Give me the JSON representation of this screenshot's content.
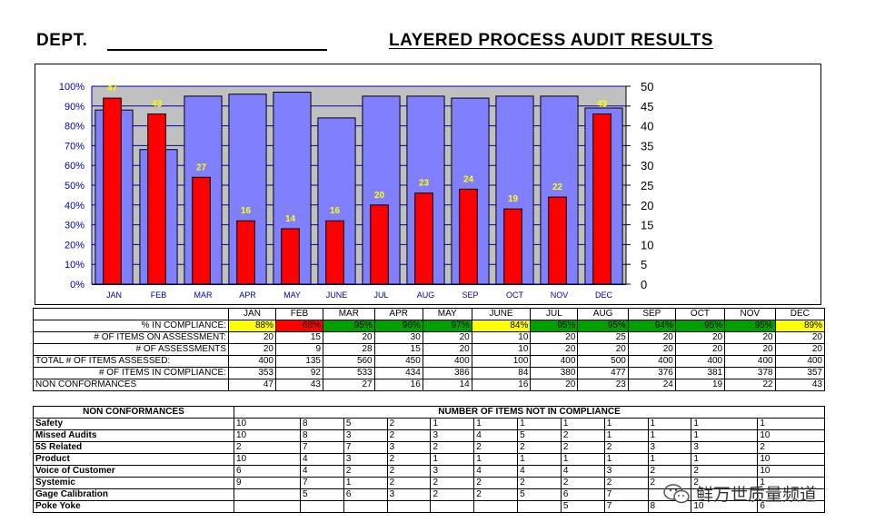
{
  "header": {
    "dept": "DEPT.",
    "title": "LAYERED PROCESS AUDIT RESULTS"
  },
  "chart_data": {
    "type": "bar",
    "categories": [
      "JAN",
      "FEB",
      "MAR",
      "APR",
      "MAY",
      "JUNE",
      "JUL",
      "AUG",
      "SEP",
      "OCT",
      "NOV",
      "DEC"
    ],
    "series": [
      {
        "values": [
          88,
          68,
          95,
          96,
          97,
          84,
          95,
          95,
          94,
          95,
          95,
          89
        ],
        "axis": "left",
        "color": "#8080ff"
      },
      {
        "values": [
          47,
          43,
          27,
          16,
          14,
          16,
          20,
          23,
          24,
          19,
          22,
          43
        ],
        "axis": "right",
        "color": "#ff0000",
        "data_labels": true
      }
    ],
    "y_left_ticks": [
      "0%",
      "10%",
      "20%",
      "30%",
      "40%",
      "50%",
      "60%",
      "70%",
      "80%",
      "90%",
      "100%"
    ],
    "y_right_ticks": [
      "0",
      "5",
      "10",
      "15",
      "20",
      "25",
      "30",
      "35",
      "40",
      "45",
      "50"
    ],
    "ylim_left": [
      0,
      100
    ],
    "ylim_right": [
      0,
      50
    ],
    "plot_background": "#c0c0c0",
    "grid": true,
    "legend": "none"
  },
  "stats": {
    "months": [
      "JAN",
      "FEB",
      "MAR",
      "APR",
      "MAY",
      "JUNE",
      "JUL",
      "AUG",
      "SEP",
      "OCT",
      "NOV",
      "DEC"
    ],
    "rows": [
      {
        "label": "% IN COMPLIANCE:",
        "values": [
          "88%",
          "68%",
          "95%",
          "96%",
          "97%",
          "84%",
          "95%",
          "95%",
          "94%",
          "95%",
          "95%",
          "89%"
        ],
        "colors": [
          "#ffff00",
          "#ff0000",
          "#00a000",
          "#00a000",
          "#00a000",
          "#ffff00",
          "#00a000",
          "#00a000",
          "#00a000",
          "#00a000",
          "#00a000",
          "#ffff00"
        ]
      },
      {
        "label": "# OF ITEMS ON ASSESSMENT:",
        "values": [
          "20",
          "15",
          "20",
          "30",
          "20",
          "10",
          "20",
          "25",
          "20",
          "20",
          "20",
          "20"
        ]
      },
      {
        "label": "# OF ASSESSMENTS",
        "values": [
          "20",
          "9",
          "28",
          "15",
          "20",
          "10",
          "20",
          "20",
          "20",
          "20",
          "20",
          "20"
        ]
      },
      {
        "label": "TOTAL # OF ITEMS ASSESSED:",
        "values": [
          "400",
          "135",
          "560",
          "450",
          "400",
          "100",
          "400",
          "500",
          "400",
          "400",
          "400",
          "400"
        ]
      },
      {
        "label": "# OF ITEMS IN COMPLIANCE:",
        "values": [
          "353",
          "92",
          "533",
          "434",
          "386",
          "84",
          "380",
          "477",
          "376",
          "381",
          "378",
          "357"
        ]
      },
      {
        "label": "NON CONFORMANCES",
        "values": [
          "47",
          "43",
          "27",
          "16",
          "14",
          "16",
          "20",
          "23",
          "24",
          "19",
          "22",
          "43"
        ]
      }
    ]
  },
  "nonconformances": {
    "header_left": "NON CONFORMANCES",
    "header_right": "NUMBER OF ITEMS NOT IN COMPLIANCE",
    "rows": [
      {
        "label": "Safety",
        "values": [
          "10",
          "8",
          "5",
          "2",
          "1",
          "1",
          "1",
          "1",
          "1",
          "1",
          "1",
          "1"
        ]
      },
      {
        "label": "Missed Audits",
        "values": [
          "10",
          "8",
          "3",
          "2",
          "3",
          "4",
          "5",
          "2",
          "1",
          "1",
          "1",
          "10"
        ]
      },
      {
        "label": "5S Related",
        "values": [
          "2",
          "7",
          "7",
          "3",
          "2",
          "2",
          "2",
          "2",
          "2",
          "3",
          "3",
          "2"
        ]
      },
      {
        "label": "Product",
        "values": [
          "10",
          "4",
          "3",
          "2",
          "1",
          "1",
          "1",
          "1",
          "1",
          "1",
          "1",
          "10"
        ]
      },
      {
        "label": "Voice of Customer",
        "values": [
          "6",
          "4",
          "2",
          "2",
          "3",
          "4",
          "4",
          "4",
          "3",
          "2",
          "2",
          "10"
        ]
      },
      {
        "label": "Systemic",
        "values": [
          "9",
          "7",
          "1",
          "2",
          "2",
          "2",
          "2",
          "2",
          "2",
          "2",
          "2",
          "1"
        ]
      },
      {
        "label": "Gage Calibration",
        "values": [
          "",
          "5",
          "6",
          "3",
          "2",
          "2",
          "5",
          "6",
          "7",
          "",
          "",
          ""
        ]
      },
      {
        "label": "Poke Yoke",
        "values": [
          "",
          "",
          "",
          "",
          "",
          "",
          "",
          "5",
          "7",
          "8",
          "10",
          "6"
        ]
      }
    ]
  },
  "watermark": {
    "text": "鲜万世质量频道",
    "icon": "wechat-icon"
  }
}
